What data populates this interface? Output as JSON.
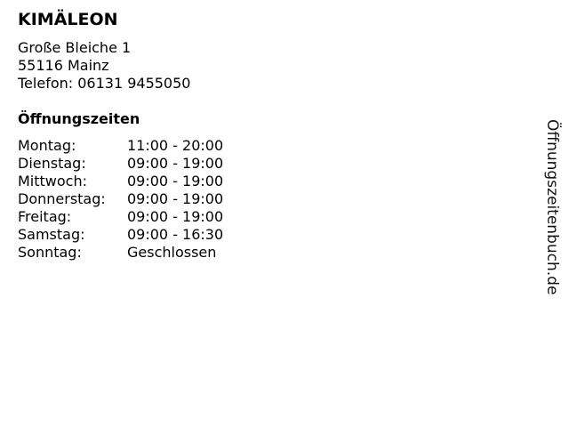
{
  "store": {
    "name": "KIMÄLEON",
    "street": "Große Bleiche 1",
    "city": "55116 Mainz",
    "phone": "Telefon: 06131 9455050"
  },
  "hours": {
    "heading": "Öffnungszeiten",
    "rows": [
      {
        "day": "Montag:",
        "time": "11:00 - 20:00"
      },
      {
        "day": "Dienstag:",
        "time": "09:00 - 19:00"
      },
      {
        "day": "Mittwoch:",
        "time": "09:00 - 19:00"
      },
      {
        "day": "Donnerstag:",
        "time": "09:00 - 19:00"
      },
      {
        "day": "Freitag:",
        "time": "09:00 - 19:00"
      },
      {
        "day": "Samstag:",
        "time": "09:00 - 16:30"
      },
      {
        "day": "Sonntag:",
        "time": "Geschlossen"
      }
    ]
  },
  "watermark": "Öffnungszeitenbuch.de"
}
